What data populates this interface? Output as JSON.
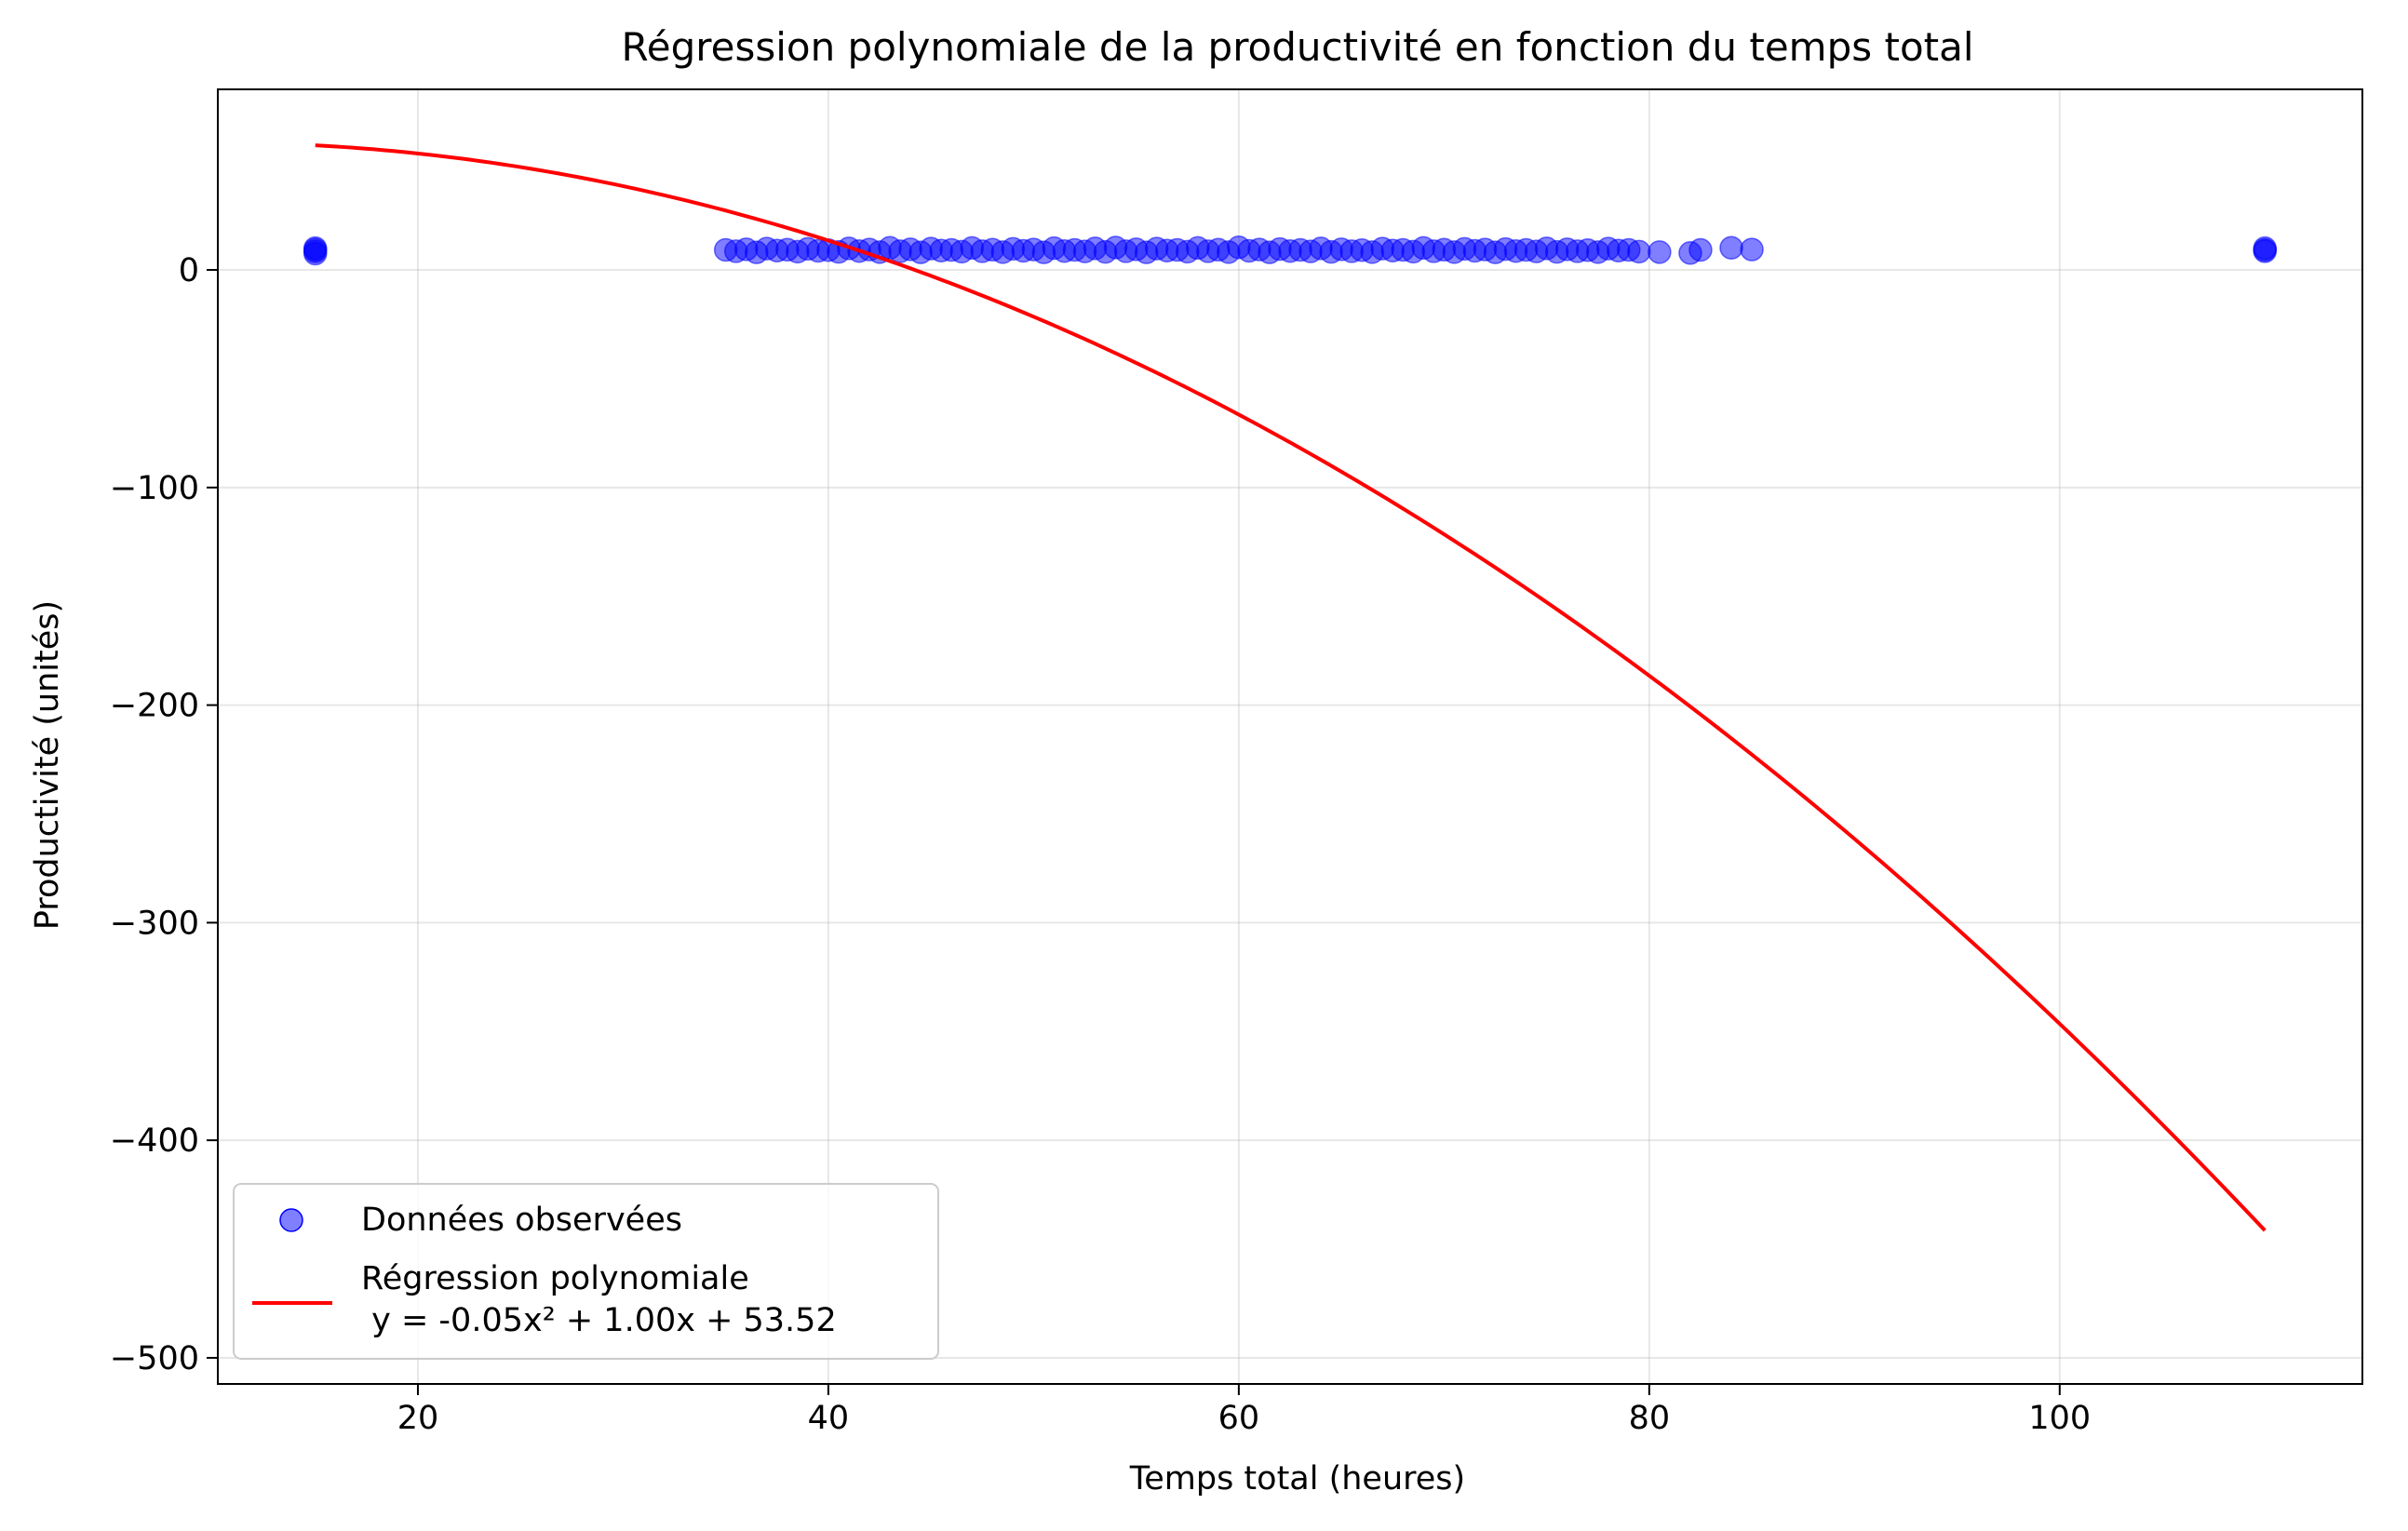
{
  "chart_data": {
    "type": "scatter",
    "title": "Régression polynomiale de la productivité en fonction du temps total",
    "xlabel": "Temps total (heures)",
    "ylabel": "Productivité (unités)",
    "xlim": [
      10.25,
      114.75
    ],
    "ylim": [
      -512,
      83
    ],
    "x_ticks": [
      20,
      40,
      60,
      80,
      100
    ],
    "x_tick_labels": [
      "20",
      "40",
      "60",
      "80",
      "100"
    ],
    "y_ticks": [
      0,
      -100,
      -200,
      -300,
      -400,
      -500
    ],
    "y_tick_labels": [
      "0",
      "−100",
      "−200",
      "−300",
      "−400",
      "−500"
    ],
    "grid": true,
    "legend_position": "lower-left",
    "series": [
      {
        "name": "Données observées",
        "kind": "scatter",
        "color": "#0000ff",
        "alpha": 0.5,
        "points": [
          [
            15,
            8.5
          ],
          [
            15,
            10
          ],
          [
            15,
            9.3
          ],
          [
            15,
            7.5
          ],
          [
            35,
            9.2
          ],
          [
            35.5,
            8.6
          ],
          [
            36,
            9.5
          ],
          [
            36.5,
            8.1
          ],
          [
            37,
            9.8
          ],
          [
            37.5,
            8.9
          ],
          [
            38,
            9.3
          ],
          [
            38.5,
            8.4
          ],
          [
            39,
            9.7
          ],
          [
            39.5,
            8.8
          ],
          [
            40,
            9.1
          ],
          [
            40.5,
            8.3
          ],
          [
            41,
            9.9
          ],
          [
            41.5,
            8.7
          ],
          [
            42,
            9.4
          ],
          [
            42.5,
            8.2
          ],
          [
            43,
            10.2
          ],
          [
            43.5,
            8.6
          ],
          [
            44,
            9.5
          ],
          [
            44.5,
            8.1
          ],
          [
            45,
            9.8
          ],
          [
            45.5,
            8.9
          ],
          [
            46,
            9.2
          ],
          [
            46.5,
            8.4
          ],
          [
            47,
            10.1
          ],
          [
            47.5,
            8.6
          ],
          [
            48,
            9.3
          ],
          [
            48.5,
            8.2
          ],
          [
            49,
            9.7
          ],
          [
            49.5,
            8.8
          ],
          [
            50,
            9.4
          ],
          [
            50.5,
            8.1
          ],
          [
            51,
            10
          ],
          [
            51.5,
            8.7
          ],
          [
            52,
            9.2
          ],
          [
            52.5,
            8.5
          ],
          [
            53,
            9.9
          ],
          [
            53.5,
            8.3
          ],
          [
            54,
            10.3
          ],
          [
            54.5,
            8.6
          ],
          [
            55,
            9.5
          ],
          [
            55.5,
            8.1
          ],
          [
            56,
            9.8
          ],
          [
            56.5,
            8.9
          ],
          [
            57,
            9.2
          ],
          [
            57.5,
            8.4
          ],
          [
            58,
            10.1
          ],
          [
            58.5,
            8.6
          ],
          [
            59,
            9.3
          ],
          [
            59.5,
            8.2
          ],
          [
            60,
            10.4
          ],
          [
            60.5,
            8.8
          ],
          [
            61,
            9.4
          ],
          [
            61.5,
            8.1
          ],
          [
            62,
            9.6
          ],
          [
            62.5,
            8.7
          ],
          [
            63,
            9.2
          ],
          [
            63.5,
            8.5
          ],
          [
            64,
            9.9
          ],
          [
            64.5,
            8.3
          ],
          [
            65,
            9.5
          ],
          [
            65.5,
            8.6
          ],
          [
            66,
            9.1
          ],
          [
            66.5,
            8.2
          ],
          [
            67,
            9.8
          ],
          [
            67.5,
            8.9
          ],
          [
            68,
            9.2
          ],
          [
            68.5,
            8.4
          ],
          [
            69,
            10.1
          ],
          [
            69.5,
            8.6
          ],
          [
            70,
            9.3
          ],
          [
            70.5,
            8.2
          ],
          [
            71,
            9.7
          ],
          [
            71.5,
            8.8
          ],
          [
            72,
            9.4
          ],
          [
            72.5,
            8.1
          ],
          [
            73,
            9.6
          ],
          [
            73.5,
            8.7
          ],
          [
            74,
            9.2
          ],
          [
            74.5,
            8.5
          ],
          [
            75,
            9.9
          ],
          [
            75.5,
            8.3
          ],
          [
            76,
            9.5
          ],
          [
            76.5,
            8.6
          ],
          [
            77,
            9.1
          ],
          [
            77.5,
            8.2
          ],
          [
            78,
            9.8
          ],
          [
            78.5,
            8.9
          ],
          [
            79,
            9.2
          ],
          [
            79.5,
            8.4
          ],
          [
            80.5,
            8.2
          ],
          [
            82,
            7.8
          ],
          [
            82.5,
            9.2
          ],
          [
            84,
            10.2
          ],
          [
            85,
            9.4
          ],
          [
            110,
            8.6
          ],
          [
            110,
            10
          ],
          [
            110,
            9.2
          ]
        ]
      },
      {
        "name": "Régression polynomiale\n y = -0.05x² + 1.00x + 53.52",
        "kind": "line",
        "color": "#ff0000",
        "coefficients": {
          "a": -0.05,
          "b": 1.0,
          "c": 53.52
        },
        "x_range": [
          15,
          110
        ]
      }
    ]
  }
}
